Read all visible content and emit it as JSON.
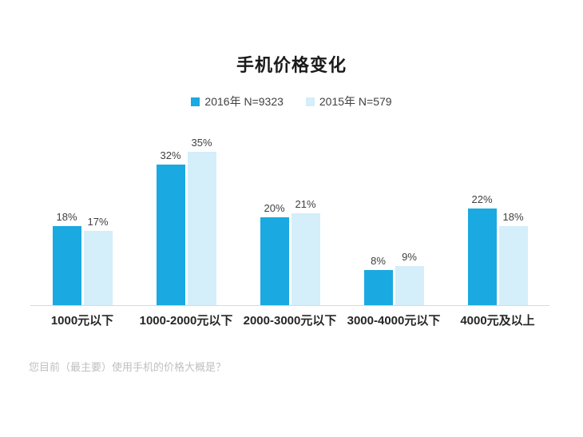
{
  "title": "手机价格变化",
  "footnote": "您目前（最主要）使用手机的价格大概是？",
  "colors": {
    "series_2016": "#1aa9e1",
    "series_2015": "#d4eefa",
    "axis_line": "#d9d9d9",
    "value_label": "#404040",
    "category_label": "#262626",
    "footnote_text": "#c0c0c0"
  },
  "chart_data": {
    "type": "bar",
    "title": "手机价格变化",
    "categories": [
      "1000元以下",
      "1000-2000元以下",
      "2000-3000元以下",
      "3000-4000元以下",
      "4000元及以上"
    ],
    "series": [
      {
        "name": "2016年 N=9323",
        "color": "#1aa9e1",
        "values": [
          18,
          32,
          20,
          8,
          22
        ]
      },
      {
        "name": "2015年 N=579",
        "color": "#d4eefa",
        "values": [
          17,
          35,
          21,
          9,
          18
        ]
      }
    ],
    "value_suffix": "%",
    "data_labels": true,
    "xlabel": "",
    "ylabel": "",
    "ylim": [
      0,
      40
    ],
    "grid": false,
    "legend_position": "top",
    "annotations": [
      "您目前（最主要）使用手机的价格大概是？"
    ]
  }
}
